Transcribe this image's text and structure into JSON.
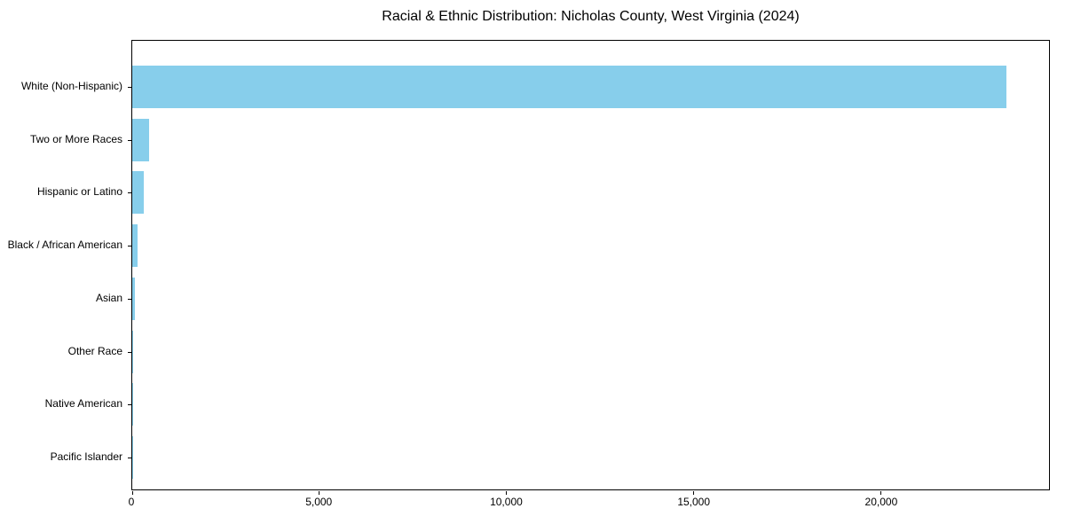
{
  "title": "Racial & Ethnic Distribution: Nicholas County, West Virginia (2024)",
  "chart_data": {
    "type": "bar",
    "orientation": "horizontal",
    "title": "Racial & Ethnic Distribution: Nicholas County, West Virginia (2024)",
    "xlabel": "",
    "ylabel": "",
    "categories": [
      "White (Non-Hispanic)",
      "Two or More Races",
      "Hispanic or Latino",
      "Black / African American",
      "Asian",
      "Other Race",
      "Native American",
      "Pacific Islander"
    ],
    "values": [
      23350,
      440,
      310,
      150,
      70,
      25,
      15,
      5
    ],
    "xlim": [
      0,
      24500
    ],
    "xticks": [
      0,
      5000,
      10000,
      15000,
      20000
    ],
    "xtick_labels": [
      "0",
      "5,000",
      "10,000",
      "15,000",
      "20,000"
    ],
    "bar_color": "#87CEEB",
    "grid": false,
    "legend": null
  }
}
